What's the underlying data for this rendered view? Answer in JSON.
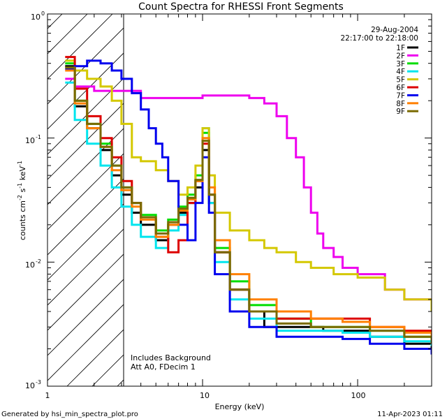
{
  "chart_data": {
    "type": "line",
    "title": "Count Spectra for RHESSI Front Segments",
    "xlabel": "Energy (keV)",
    "ylabel_parts": [
      "counts cm",
      "-2",
      " s",
      "-1",
      " keV",
      "-1"
    ],
    "x_scale": "log",
    "y_scale": "log",
    "xlim": [
      1,
      300
    ],
    "ylim": [
      0.001,
      1
    ],
    "x_ticks": [
      {
        "value": 1,
        "label": "1"
      },
      {
        "value": 10,
        "label": "10"
      },
      {
        "value": 100,
        "label": "100"
      }
    ],
    "y_ticks": [
      {
        "value": 1,
        "base": "10",
        "exp": "0"
      },
      {
        "value": 0.1,
        "base": "10",
        "exp": "-1"
      },
      {
        "value": 0.01,
        "base": "10",
        "exp": "-2"
      },
      {
        "value": 0.001,
        "base": "10",
        "exp": "-3"
      }
    ],
    "legend": {
      "date": "29-Aug-2004",
      "time_range": "22:17:00 to 22:18:00",
      "placement": "top-right",
      "entries": [
        {
          "label": "1F",
          "color": "#000000"
        },
        {
          "label": "2F",
          "color": "#ee00ee"
        },
        {
          "label": "3F",
          "color": "#00dd00"
        },
        {
          "label": "4F",
          "color": "#00e5ee"
        },
        {
          "label": "5F",
          "color": "#d4c800"
        },
        {
          "label": "6F",
          "color": "#dd0000"
        },
        {
          "label": "7F",
          "color": "#0000ee"
        },
        {
          "label": "8F",
          "color": "#ff8000"
        },
        {
          "label": "9F",
          "color": "#7a6a00"
        }
      ]
    },
    "annotations": [
      "Includes Background",
      "Att A0, FDecim 1"
    ],
    "excluded_region_keV": [
      1,
      3
    ],
    "series": [
      {
        "name": "1F",
        "color": "#000000",
        "points": [
          [
            1.3,
            0.38
          ],
          [
            1.5,
            0.18
          ],
          [
            1.8,
            0.12
          ],
          [
            2.2,
            0.08
          ],
          [
            2.6,
            0.05
          ],
          [
            3,
            0.035
          ],
          [
            3.5,
            0.025
          ],
          [
            4,
            0.02
          ],
          [
            5,
            0.015
          ],
          [
            6,
            0.02
          ],
          [
            7,
            0.025
          ],
          [
            8,
            0.03
          ],
          [
            9,
            0.04
          ],
          [
            10,
            0.08
          ],
          [
            11,
            0.03
          ],
          [
            12,
            0.012
          ],
          [
            15,
            0.006
          ],
          [
            20,
            0.004
          ],
          [
            25,
            0.003
          ],
          [
            30,
            0.003
          ],
          [
            40,
            0.003
          ],
          [
            60,
            0.0028
          ],
          [
            80,
            0.0028
          ],
          [
            120,
            0.0025
          ],
          [
            200,
            0.0022
          ],
          [
            300,
            0.002
          ]
        ]
      },
      {
        "name": "2F",
        "color": "#ee00ee",
        "points": [
          [
            1.3,
            0.3
          ],
          [
            1.5,
            0.26
          ],
          [
            2,
            0.24
          ],
          [
            3,
            0.24
          ],
          [
            4,
            0.21
          ],
          [
            5,
            0.21
          ],
          [
            7,
            0.21
          ],
          [
            10,
            0.22
          ],
          [
            15,
            0.22
          ],
          [
            20,
            0.21
          ],
          [
            25,
            0.19
          ],
          [
            30,
            0.15
          ],
          [
            35,
            0.1
          ],
          [
            40,
            0.07
          ],
          [
            45,
            0.04
          ],
          [
            50,
            0.025
          ],
          [
            55,
            0.017
          ],
          [
            60,
            0.013
          ],
          [
            70,
            0.011
          ],
          [
            80,
            0.009
          ],
          [
            100,
            0.008
          ],
          [
            150,
            0.006
          ],
          [
            200,
            0.005
          ],
          [
            300,
            0.004
          ]
        ]
      },
      {
        "name": "3F",
        "color": "#00dd00",
        "points": [
          [
            1.3,
            0.4
          ],
          [
            1.5,
            0.2
          ],
          [
            1.8,
            0.13
          ],
          [
            2.2,
            0.09
          ],
          [
            2.6,
            0.06
          ],
          [
            3,
            0.04
          ],
          [
            3.5,
            0.03
          ],
          [
            4,
            0.024
          ],
          [
            5,
            0.018
          ],
          [
            6,
            0.022
          ],
          [
            7,
            0.028
          ],
          [
            8,
            0.035
          ],
          [
            9,
            0.05
          ],
          [
            10,
            0.11
          ],
          [
            11,
            0.035
          ],
          [
            12,
            0.013
          ],
          [
            15,
            0.007
          ],
          [
            20,
            0.0045
          ],
          [
            30,
            0.0035
          ],
          [
            50,
            0.003
          ],
          [
            80,
            0.003
          ],
          [
            120,
            0.0028
          ],
          [
            200,
            0.0025
          ],
          [
            300,
            0.0023
          ]
        ]
      },
      {
        "name": "4F",
        "color": "#00e5ee",
        "points": [
          [
            1.3,
            0.28
          ],
          [
            1.5,
            0.14
          ],
          [
            1.8,
            0.09
          ],
          [
            2.2,
            0.06
          ],
          [
            2.6,
            0.04
          ],
          [
            3,
            0.028
          ],
          [
            3.5,
            0.02
          ],
          [
            4,
            0.016
          ],
          [
            5,
            0.013
          ],
          [
            6,
            0.018
          ],
          [
            7,
            0.024
          ],
          [
            8,
            0.03
          ],
          [
            9,
            0.045
          ],
          [
            10,
            0.12
          ],
          [
            11,
            0.03
          ],
          [
            12,
            0.01
          ],
          [
            15,
            0.005
          ],
          [
            20,
            0.0035
          ],
          [
            30,
            0.0028
          ],
          [
            50,
            0.0028
          ],
          [
            80,
            0.0027
          ],
          [
            120,
            0.0025
          ],
          [
            200,
            0.0023
          ],
          [
            300,
            0.0021
          ]
        ]
      },
      {
        "name": "5F",
        "color": "#d4c800",
        "points": [
          [
            1.3,
            0.42
          ],
          [
            1.5,
            0.35
          ],
          [
            1.8,
            0.3
          ],
          [
            2.2,
            0.26
          ],
          [
            2.6,
            0.2
          ],
          [
            3,
            0.13
          ],
          [
            3.5,
            0.07
          ],
          [
            4,
            0.065
          ],
          [
            5,
            0.055
          ],
          [
            6,
            0.045
          ],
          [
            7,
            0.035
          ],
          [
            8,
            0.04
          ],
          [
            9,
            0.06
          ],
          [
            10,
            0.12
          ],
          [
            11,
            0.05
          ],
          [
            12,
            0.025
          ],
          [
            15,
            0.018
          ],
          [
            20,
            0.015
          ],
          [
            25,
            0.013
          ],
          [
            30,
            0.012
          ],
          [
            40,
            0.01
          ],
          [
            50,
            0.009
          ],
          [
            70,
            0.008
          ],
          [
            100,
            0.0075
          ],
          [
            150,
            0.006
          ],
          [
            200,
            0.005
          ],
          [
            300,
            0.004
          ]
        ]
      },
      {
        "name": "6F",
        "color": "#dd0000",
        "points": [
          [
            1.3,
            0.45
          ],
          [
            1.5,
            0.25
          ],
          [
            1.8,
            0.15
          ],
          [
            2.2,
            0.1
          ],
          [
            2.6,
            0.07
          ],
          [
            3,
            0.045
          ],
          [
            3.5,
            0.03
          ],
          [
            4,
            0.022
          ],
          [
            5,
            0.016
          ],
          [
            6,
            0.012
          ],
          [
            7,
            0.015
          ],
          [
            8,
            0.03
          ],
          [
            9,
            0.045
          ],
          [
            10,
            0.09
          ],
          [
            11,
            0.035
          ],
          [
            12,
            0.012
          ],
          [
            15,
            0.006
          ],
          [
            20,
            0.004
          ],
          [
            30,
            0.0035
          ],
          [
            50,
            0.0035
          ],
          [
            80,
            0.0035
          ],
          [
            120,
            0.003
          ],
          [
            200,
            0.0028
          ],
          [
            300,
            0.0025
          ]
        ]
      },
      {
        "name": "7F",
        "color": "#0000ee",
        "points": [
          [
            1.3,
            0.36
          ],
          [
            1.5,
            0.38
          ],
          [
            1.8,
            0.42
          ],
          [
            2.2,
            0.4
          ],
          [
            2.6,
            0.35
          ],
          [
            3,
            0.3
          ],
          [
            3.5,
            0.23
          ],
          [
            4,
            0.17
          ],
          [
            4.5,
            0.12
          ],
          [
            5,
            0.09
          ],
          [
            5.5,
            0.07
          ],
          [
            6,
            0.045
          ],
          [
            7,
            0.02
          ],
          [
            8,
            0.015
          ],
          [
            9,
            0.03
          ],
          [
            10,
            0.07
          ],
          [
            11,
            0.025
          ],
          [
            12,
            0.008
          ],
          [
            15,
            0.004
          ],
          [
            20,
            0.003
          ],
          [
            30,
            0.0025
          ],
          [
            50,
            0.0025
          ],
          [
            80,
            0.0024
          ],
          [
            120,
            0.0022
          ],
          [
            200,
            0.002
          ],
          [
            300,
            0.0018
          ]
        ]
      },
      {
        "name": "8F",
        "color": "#ff8000",
        "points": [
          [
            1.3,
            0.35
          ],
          [
            1.5,
            0.19
          ],
          [
            1.8,
            0.12
          ],
          [
            2.2,
            0.085
          ],
          [
            2.6,
            0.055
          ],
          [
            3,
            0.038
          ],
          [
            3.5,
            0.028
          ],
          [
            4,
            0.022
          ],
          [
            5,
            0.016
          ],
          [
            6,
            0.02
          ],
          [
            7,
            0.026
          ],
          [
            8,
            0.032
          ],
          [
            9,
            0.045
          ],
          [
            10,
            0.1
          ],
          [
            11,
            0.04
          ],
          [
            12,
            0.015
          ],
          [
            15,
            0.008
          ],
          [
            20,
            0.005
          ],
          [
            30,
            0.004
          ],
          [
            50,
            0.0035
          ],
          [
            80,
            0.0033
          ],
          [
            120,
            0.003
          ],
          [
            200,
            0.0027
          ],
          [
            300,
            0.0024
          ]
        ]
      },
      {
        "name": "9F",
        "color": "#7a6a00",
        "points": [
          [
            1.3,
            0.37
          ],
          [
            1.5,
            0.2
          ],
          [
            1.8,
            0.13
          ],
          [
            2.2,
            0.085
          ],
          [
            2.6,
            0.06
          ],
          [
            3,
            0.04
          ],
          [
            3.5,
            0.03
          ],
          [
            4,
            0.023
          ],
          [
            5,
            0.017
          ],
          [
            6,
            0.021
          ],
          [
            7,
            0.027
          ],
          [
            8,
            0.033
          ],
          [
            9,
            0.046
          ],
          [
            10,
            0.095
          ],
          [
            11,
            0.035
          ],
          [
            12,
            0.012
          ],
          [
            15,
            0.006
          ],
          [
            20,
            0.004
          ],
          [
            30,
            0.0032
          ],
          [
            50,
            0.003
          ],
          [
            80,
            0.003
          ],
          [
            120,
            0.0028
          ],
          [
            200,
            0.0025
          ],
          [
            300,
            0.0022
          ]
        ]
      }
    ]
  },
  "footer": {
    "generated_by": "Generated by hsi_min_spectra_plot.pro",
    "timestamp": "11-Apr-2023 01:11"
  }
}
